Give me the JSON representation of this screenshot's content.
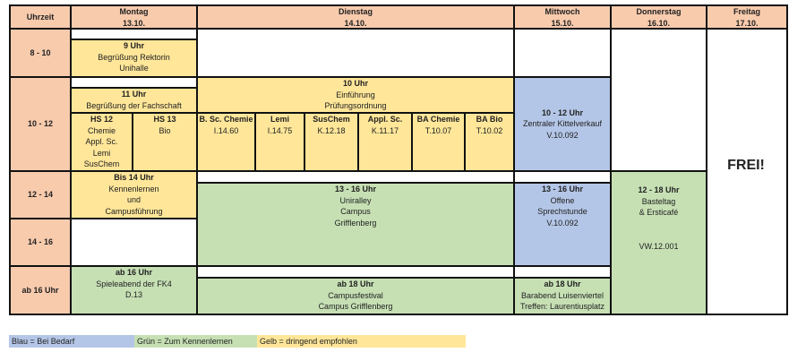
{
  "header": {
    "time": "Uhrzeit",
    "days": [
      {
        "name": "Montag",
        "date": "13.10."
      },
      {
        "name": "Dienstag",
        "date": "14.10."
      },
      {
        "name": "Mittwoch",
        "date": "15.10."
      },
      {
        "name": "Donnerstag",
        "date": "16.10."
      },
      {
        "name": "Freitag",
        "date": "17.10."
      }
    ]
  },
  "times": [
    "8 - 10",
    "10 - 12",
    "12 - 14",
    "14 - 16",
    "ab 16 Uhr"
  ],
  "montag": {
    "e1": [
      "9 Uhr",
      "Begrüßung Rektorin",
      "Unihalle"
    ],
    "e2": [
      "11 Uhr",
      "Begrüßung der Fachschaft"
    ],
    "hs12": [
      "HS 12",
      "Chemie",
      "Appl. Sc.",
      "Lemi",
      "SusChem"
    ],
    "hs13": [
      "HS 13",
      "Bio"
    ],
    "e3": [
      "Bis 14 Uhr",
      "Kennenlernen",
      "und",
      "Campusführung"
    ],
    "e4": [
      "ab 16 Uhr",
      "Spieleabend der FK4",
      "D.13"
    ]
  },
  "dienstag": {
    "e1": [
      "10 Uhr",
      "Einführung",
      "Prüfungsordnung"
    ],
    "rooms": [
      [
        "B. Sc. Chemie",
        "I.14.60"
      ],
      [
        "Lemi",
        "I.14.75"
      ],
      [
        "SusChem",
        "K.12.18"
      ],
      [
        "Appl. Sc.",
        "K.11.17"
      ],
      [
        "BA Chemie",
        "T.10.07"
      ],
      [
        "BA Bio",
        "T.10.02"
      ]
    ],
    "e2": [
      "13 - 16 Uhr",
      "Uniralley",
      "Campus",
      "Grifflenberg"
    ],
    "e3": [
      "ab 18 Uhr",
      "Campusfestival",
      "Campus Grifflenberg"
    ]
  },
  "mittwoch": {
    "e1": [
      "10 - 12 Uhr",
      "Zentraler Kittelverkauf",
      "V.10.092"
    ],
    "e2": [
      "13 - 16 Uhr",
      "Offene",
      "Sprechstunde",
      "V.10.092"
    ],
    "e3": [
      "ab 18 Uhr",
      "Barabend Luisenviertel",
      "Treffen: Laurentiusplatz"
    ]
  },
  "donnerstag": {
    "e1": [
      "12 - 18 Uhr",
      "Basteltag",
      "& Ersticafé",
      "",
      "",
      "VW.12.001"
    ]
  },
  "freitag": {
    "label": "FREI!"
  },
  "legend": [
    "Blau = Bei Bedarf",
    "Grün = Zum Kennenlernen",
    "Gelb = dringend empfohlen"
  ],
  "colors": {
    "header": "#f8cbad",
    "blue": "#b4c6e7",
    "green": "#c6e0b4",
    "yellow": "#ffe699"
  }
}
